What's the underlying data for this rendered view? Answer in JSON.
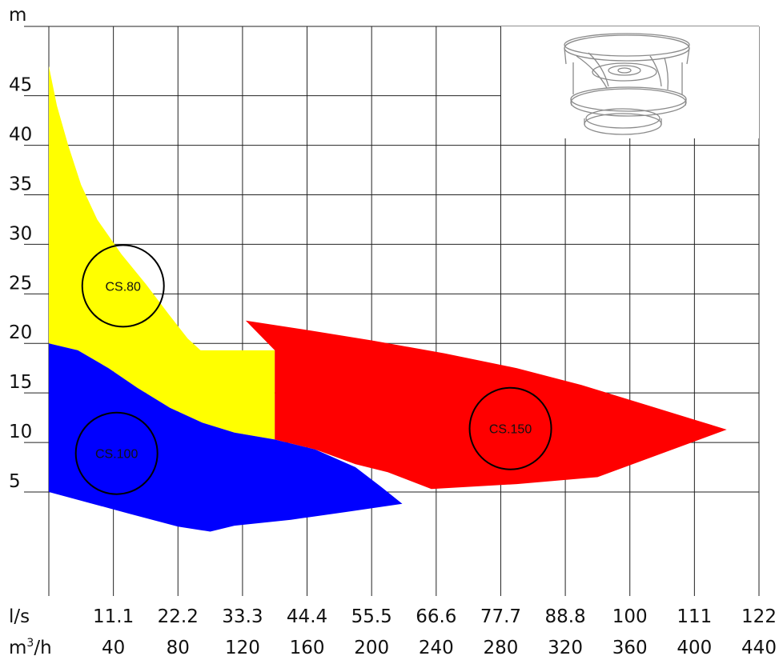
{
  "chart_data": {
    "type": "area",
    "title": "",
    "ylabel": "m",
    "y_ticks": [
      "5",
      "10",
      "15",
      "20",
      "25",
      "30",
      "35",
      "40",
      "45"
    ],
    "y_tick_values": [
      5,
      10,
      15,
      20,
      25,
      30,
      35,
      40,
      45
    ],
    "ylim": [
      -5.5,
      52
    ],
    "x_axes": [
      {
        "unit": "l/s",
        "ticks": [
          "11.1",
          "22.2",
          "33.3",
          "44.4",
          "55.5",
          "66.6",
          "77.7",
          "88.8",
          "100",
          "111",
          "122"
        ]
      },
      {
        "unit": "m³/h",
        "unit_base": "m",
        "unit_sup": "3",
        "unit_tail": "/h",
        "ticks": [
          "40",
          "80",
          "120",
          "160",
          "200",
          "240",
          "280",
          "320",
          "360",
          "400",
          "440"
        ]
      }
    ],
    "xlim_m3h": [
      0,
      440
    ],
    "grid": true,
    "series": [
      {
        "name": "CS.80",
        "color": "#ffff00",
        "label_at": [
          46,
          25.8
        ],
        "points": [
          [
            0,
            48
          ],
          [
            5,
            44
          ],
          [
            12,
            40
          ],
          [
            20,
            36
          ],
          [
            30,
            32.5
          ],
          [
            45,
            29
          ],
          [
            60,
            26
          ],
          [
            74,
            23
          ],
          [
            86,
            20.5
          ],
          [
            94,
            19.3
          ],
          [
            140,
            19.3
          ],
          [
            140,
            10.3
          ],
          [
            115,
            11
          ],
          [
            95,
            12
          ],
          [
            75,
            13.5
          ],
          [
            55,
            15.5
          ],
          [
            37,
            17.5
          ],
          [
            18,
            19.3
          ],
          [
            0,
            20
          ]
        ]
      },
      {
        "name": "CS.100",
        "color": "#0000ff",
        "label_at": [
          42,
          8.9
        ],
        "points": [
          [
            0,
            20
          ],
          [
            18,
            19.3
          ],
          [
            37,
            17.5
          ],
          [
            55,
            15.5
          ],
          [
            75,
            13.5
          ],
          [
            95,
            12
          ],
          [
            115,
            11
          ],
          [
            140,
            10.3
          ],
          [
            165,
            9.3
          ],
          [
            190,
            7.5
          ],
          [
            206,
            5.5
          ],
          [
            219,
            3.8
          ],
          [
            185,
            3
          ],
          [
            150,
            2.2
          ],
          [
            115,
            1.6
          ],
          [
            100,
            1
          ],
          [
            80,
            1.5
          ],
          [
            50,
            2.8
          ],
          [
            0,
            5
          ]
        ]
      },
      {
        "name": "CS.150",
        "color": "#ff0000",
        "label_at": [
          286,
          11.4
        ],
        "points": [
          [
            122,
            22.3
          ],
          [
            162,
            21.3
          ],
          [
            200,
            20.3
          ],
          [
            245,
            19
          ],
          [
            290,
            17.5
          ],
          [
            330,
            15.8
          ],
          [
            370,
            13.8
          ],
          [
            400,
            12.3
          ],
          [
            420,
            11.3
          ],
          [
            340,
            6.5
          ],
          [
            290,
            5.8
          ],
          [
            237,
            5.3
          ],
          [
            210,
            7
          ],
          [
            190,
            7.8
          ],
          [
            165,
            9.3
          ],
          [
            140,
            10.3
          ],
          [
            140,
            19.3
          ],
          [
            122,
            22.3
          ]
        ]
      }
    ]
  }
}
